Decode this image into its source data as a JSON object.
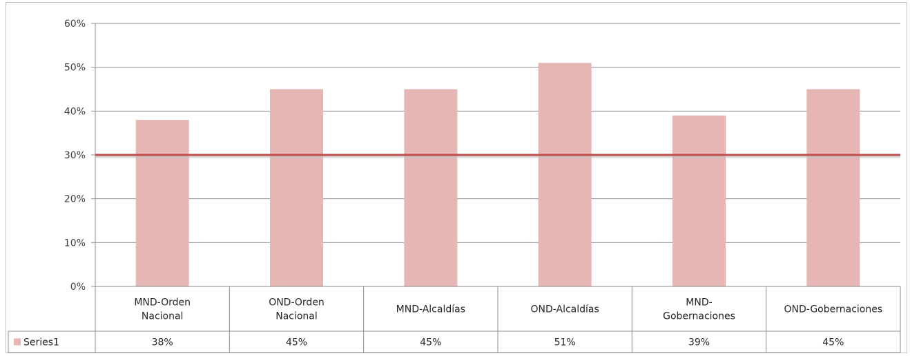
{
  "chart_data": {
    "type": "bar",
    "categories": [
      [
        "MND-Orden",
        "Nacional"
      ],
      [
        "OND-Orden",
        "Nacional"
      ],
      [
        "MND-Alcaldías"
      ],
      [
        "OND-Alcaldías"
      ],
      [
        "MND-",
        "Gobernaciones"
      ],
      [
        "OND-Gobernaciones"
      ]
    ],
    "series": [
      {
        "name": "Series1",
        "values": [
          0.38,
          0.45,
          0.45,
          0.51,
          0.39,
          0.45
        ],
        "labels": [
          "38%",
          "45%",
          "45%",
          "51%",
          "39%",
          "45%"
        ],
        "color": "#e6b6b5"
      }
    ],
    "reference_line": {
      "value": 0.3,
      "color": "#c0504d"
    },
    "ylim": [
      0,
      0.6
    ],
    "y_ticks": [
      "0%",
      "10%",
      "20%",
      "30%",
      "40%",
      "50%",
      "60%"
    ],
    "grid": true,
    "legend": "data-table",
    "data_table": true
  }
}
